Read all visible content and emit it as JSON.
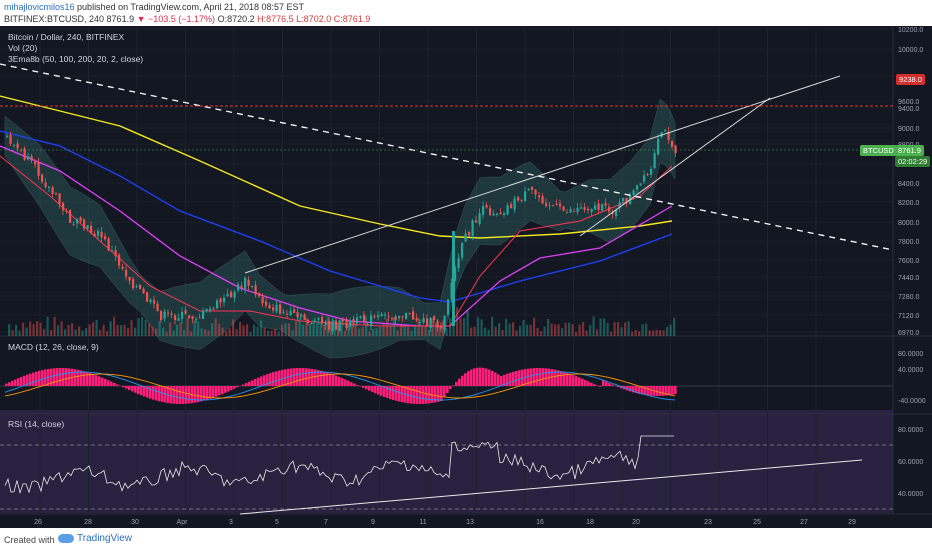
{
  "header": {
    "author": "mihajlovicmilos16",
    "published": "published on TradingView.com, April 21, 2018 08:57 EST",
    "symbol_line": "BITFINEX:BTCUSD, 240",
    "last": "8761.9",
    "change": "▼ −103.5 (−1.17%)",
    "ohlc_o": "O:8720.2",
    "ohlc_h": "H:8776.5",
    "ohlc_l": "L:8702.0",
    "ohlc_c": "C:8761.9"
  },
  "legends": {
    "main_title": "Bitcoin / Dollar, 240, BITFINEX",
    "vol": "Vol (20)",
    "ema": "3Ema8b (50, 100, 200, 20, 2, close)",
    "macd": "MACD (12, 26, close, 9)",
    "rsi": "RSI (14, close)"
  },
  "price_axis": [
    "10200.0",
    "10000.0",
    "9800.0",
    "9600.0",
    "9400.0",
    "9000.0",
    "8800.0",
    "8600.0",
    "8400.0",
    "8200.0",
    "8000.0",
    "7800.0",
    "7600.0",
    "7440.0",
    "7280.0",
    "7120.0",
    "6970.0"
  ],
  "macd_axis": [
    "80.0000",
    "40.0000",
    "-40.0000"
  ],
  "rsi_axis": [
    "80.0000",
    "60.0000",
    "40.0000"
  ],
  "time_axis": [
    "26",
    "28",
    "30",
    "Apr",
    "3",
    "5",
    "7",
    "9",
    "11",
    "13",
    "16",
    "18",
    "20",
    "23",
    "25",
    "27",
    "29"
  ],
  "tags": {
    "resistance": "9238.0",
    "symbol": "BTCUSD",
    "price": "8761.9",
    "countdown": "02:02:29"
  },
  "footer": {
    "created": "Created with",
    "brand": "TradingView"
  },
  "colors": {
    "background": "#131722",
    "bull": "#26a69a",
    "bear": "#ef5350",
    "macd_hist": "#ff1f7a",
    "ema50": "#e040fb",
    "ema100": "#1e40ff",
    "ema200": "#f5e81e",
    "resistance": "#e53935",
    "rsi_band": "#3a2a5a"
  }
}
